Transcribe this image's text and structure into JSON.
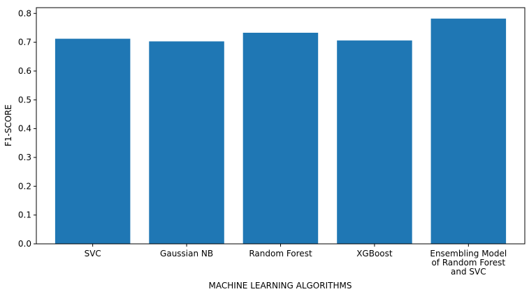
{
  "chart_data": {
    "type": "bar",
    "categories": [
      "SVC",
      "Gaussian NB",
      "Random Forest",
      "XGBoost",
      "Ensembling Model\nof Random Forest\nand SVC"
    ],
    "values": [
      0.712,
      0.703,
      0.733,
      0.706,
      0.782
    ],
    "title": "",
    "xlabel": "MACHINE LEARNING ALGORITHMS",
    "ylabel": "F1-SCORE",
    "ylim": [
      0,
      0.82
    ],
    "yticks": [
      "0.0",
      "0.1",
      "0.2",
      "0.3",
      "0.4",
      "0.5",
      "0.6",
      "0.7",
      "0.8"
    ],
    "bar_color": "#1f77b4",
    "grid": false,
    "legend": "none"
  }
}
